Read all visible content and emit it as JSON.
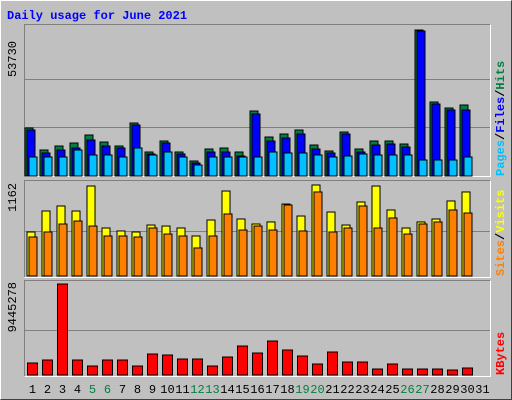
{
  "chart_data": [
    {
      "type": "bar",
      "title": "Daily usage for June 2021",
      "ylim": [
        0,
        53730
      ],
      "series": [
        {
          "name": "Hits",
          "color": "#008040",
          "values": [
            17664,
            9568,
            11040,
            12144,
            15088,
            12512,
            11040,
            19504,
            8832,
            12880,
            8832,
            5520,
            9936,
            10304,
            8832,
            23920,
            14352,
            15456,
            16928,
            11408,
            9200,
            16192,
            9936,
            12880,
            12880,
            11776,
            53730,
            27232,
            25024,
            26128,
            null
          ]
        },
        {
          "name": "Files",
          "color": "#0000ff",
          "values": [
            16928,
            8464,
            9568,
            10304,
            13248,
            11040,
            10304,
            18768,
            8096,
            12144,
            8096,
            4784,
            8832,
            8832,
            7360,
            22816,
            12880,
            13984,
            15456,
            9936,
            8464,
            15456,
            8832,
            11408,
            11776,
            10672,
            53360,
            26496,
            24288,
            24288,
            null
          ]
        },
        {
          "name": "Pages",
          "color": "#00c0ff",
          "values": [
            6992,
            6992,
            6992,
            9568,
            7728,
            7728,
            6992,
            10304,
            7728,
            8832,
            6992,
            4048,
            6992,
            6992,
            6992,
            6992,
            8832,
            8464,
            8464,
            7728,
            6992,
            7360,
            8096,
            7728,
            7728,
            7728,
            5888,
            5888,
            5888,
            6992,
            null
          ]
        }
      ]
    },
    {
      "type": "bar",
      "ylim": [
        0,
        1162
      ],
      "series": [
        {
          "name": "Visits",
          "color": "#ffff00",
          "values": [
            562,
            830,
            894,
            830,
            1149,
            613,
            575,
            562,
            651,
            638,
            613,
            511,
            715,
            1085,
            728,
            664,
            690,
            919,
            766,
            1162,
            817,
            651,
            945,
            1149,
            843,
            613,
            690,
            728,
            958,
            1073,
            null
          ]
        },
        {
          "name": "Sites",
          "color": "#ff8000",
          "values": [
            498,
            562,
            664,
            702,
            638,
            511,
            511,
            498,
            613,
            536,
            511,
            358,
            511,
            792,
            587,
            638,
            587,
            907,
            575,
            1073,
            562,
            613,
            894,
            613,
            741,
            536,
            664,
            690,
            843,
            804,
            null
          ]
        }
      ]
    },
    {
      "type": "bar",
      "ylim": [
        0,
        9445278
      ],
      "categories": [
        "1",
        "2",
        "3",
        "4",
        "5",
        "6",
        "7",
        "8",
        "9",
        "10",
        "11",
        "12",
        "13",
        "14",
        "15",
        "16",
        "17",
        "18",
        "19",
        "20",
        "21",
        "22",
        "23",
        "24",
        "25",
        "26",
        "27",
        "28",
        "29",
        "30",
        "31"
      ],
      "category_highlight": {
        "color": "#008040",
        "indices": [
          4,
          5,
          11,
          12,
          18,
          19,
          25,
          26
        ]
      },
      "series": [
        {
          "name": "KBytes",
          "color": "#ff0000",
          "values": [
            1245528,
            1556910,
            9445278,
            1556910,
            934146,
            1556910,
            1556910,
            934146,
            2179674,
            2075880,
            1660704,
            1660704,
            934146,
            1868292,
            3010026,
            2283468,
            3528996,
            2594850,
            1972086,
            1141734,
            2387262,
            1349322,
            1349322,
            622764,
            1141734,
            622764,
            622764,
            622764,
            518970,
            726558,
            null
          ]
        }
      ]
    }
  ],
  "legend_separator": "/"
}
